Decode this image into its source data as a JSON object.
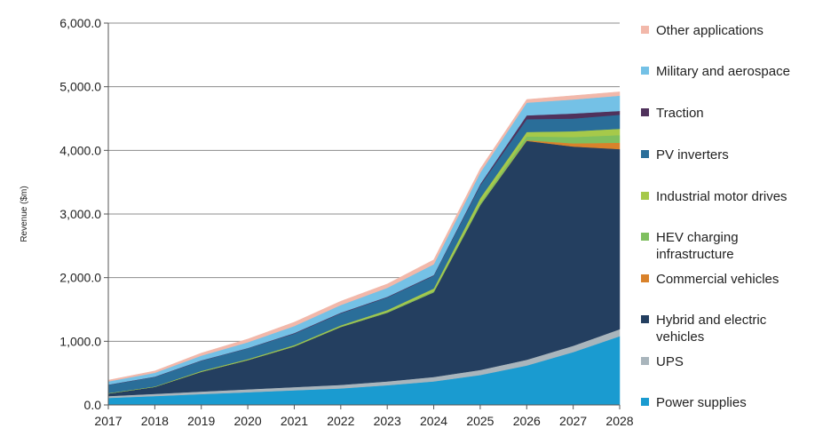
{
  "chart_data": {
    "type": "area",
    "stacked": true,
    "title": "",
    "xlabel": "",
    "ylabel": "Revenue ($m)",
    "ylim": [
      0,
      6000
    ],
    "yticks": [
      "0.0",
      "1,000.0",
      "2,000.0",
      "3,000.0",
      "4,000.0",
      "5,000.0",
      "6,000.0"
    ],
    "x": [
      "2017",
      "2018",
      "2019",
      "2020",
      "2021",
      "2022",
      "2023",
      "2024",
      "2025",
      "2026",
      "2027",
      "2028"
    ],
    "grid": "horizontal",
    "legend_position": "right",
    "series": [
      {
        "name": "Power supplies",
        "color": "#1a9bd0",
        "values": [
          110,
          140,
          170,
          200,
          230,
          260,
          310,
          370,
          470,
          620,
          830,
          1080
        ]
      },
      {
        "name": "UPS",
        "color": "#a9b5bc",
        "values": [
          30,
          35,
          40,
          45,
          50,
          55,
          60,
          70,
          80,
          90,
          100,
          110
        ]
      },
      {
        "name": "Hybrid and electric vehicles",
        "color": "#243f60",
        "values": [
          40,
          110,
          310,
          460,
          640,
          910,
          1080,
          1330,
          2590,
          3440,
          3130,
          2830
        ]
      },
      {
        "name": "Commercial vehicles",
        "color": "#d9822b",
        "values": [
          0,
          0,
          0,
          0,
          0,
          0,
          0,
          0,
          0,
          10,
          50,
          100
        ]
      },
      {
        "name": "HEV charging infrastructure",
        "color": "#7fbf5f",
        "values": [
          0,
          0,
          5,
          5,
          10,
          10,
          15,
          20,
          30,
          60,
          100,
          120
        ]
      },
      {
        "name": "Industrial motor drives",
        "color": "#a6c94a",
        "values": [
          5,
          5,
          10,
          10,
          10,
          15,
          25,
          40,
          80,
          70,
          90,
          100
        ]
      },
      {
        "name": "PV inverters",
        "color": "#2a6e99",
        "values": [
          130,
          150,
          160,
          170,
          180,
          190,
          200,
          200,
          200,
          200,
          200,
          220
        ]
      },
      {
        "name": "Traction",
        "color": "#50325c",
        "values": [
          5,
          5,
          5,
          5,
          10,
          10,
          10,
          10,
          20,
          60,
          80,
          60
        ]
      },
      {
        "name": "Military and aerospace",
        "color": "#74c1e6",
        "values": [
          50,
          60,
          75,
          90,
          110,
          120,
          140,
          170,
          180,
          200,
          220,
          240
        ]
      },
      {
        "name": "Other applications",
        "color": "#f2b8aa",
        "values": [
          20,
          30,
          40,
          50,
          60,
          60,
          60,
          70,
          60,
          50,
          60,
          60
        ]
      }
    ]
  }
}
